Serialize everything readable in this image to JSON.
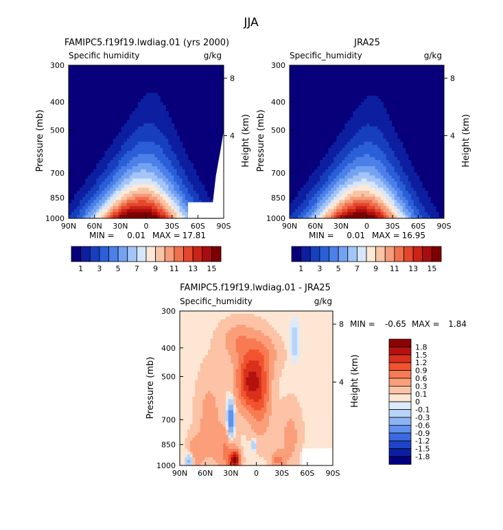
{
  "figure": {
    "title": "JJA"
  },
  "chart_data": [
    {
      "type": "heatmap",
      "title": "FAMIPC5.f19f19.lwdiag.01 (yrs 2000)",
      "subtitle_left": "Specific humidity",
      "subtitle_right": "g/kg",
      "ylabel": "Pressure (mb)",
      "ylabel_right": "Height (km)",
      "x_ticks": [
        "90N",
        "60N",
        "30N",
        "0",
        "30S",
        "60S",
        "90S"
      ],
      "y_ticks": [
        "300",
        "400",
        "500",
        "700",
        "850",
        "1000"
      ],
      "y_right_ticks": [
        "8",
        "4"
      ],
      "stats": {
        "min_label": "MIN =",
        "min": "0.01",
        "max_label": "MAX =",
        "max": "17.81"
      },
      "peak": {
        "lat": 15,
        "p": 950,
        "value": 17.81
      },
      "colorbar": {
        "orientation": "horizontal",
        "labels": [
          "1",
          "3",
          "5",
          "7",
          "9",
          "11",
          "13",
          "15"
        ]
      }
    },
    {
      "type": "heatmap",
      "title": "JRA25",
      "subtitle_left": "Specific_humidity",
      "subtitle_right": "g/kg",
      "ylabel": "Pressure (mb)",
      "ylabel_right": "Height (km)",
      "x_ticks": [
        "90N",
        "60N",
        "30N",
        "0",
        "30S",
        "60S",
        "90S"
      ],
      "y_ticks": [
        "300",
        "400",
        "500",
        "700",
        "850",
        "1000"
      ],
      "y_right_ticks": [
        "8",
        "4"
      ],
      "stats": {
        "min_label": "MIN =",
        "min": "0.01",
        "max_label": "MAX =",
        "max": "16.95"
      },
      "peak": {
        "lat": 8,
        "p": 950,
        "value": 16.95
      },
      "colorbar": {
        "orientation": "horizontal",
        "labels": [
          "1",
          "3",
          "5",
          "7",
          "9",
          "11",
          "13",
          "15"
        ]
      }
    },
    {
      "type": "heatmap",
      "title": "FAMIPC5.f19f19.lwdiag.01 - JRA25",
      "subtitle_left": "Specific_humidity",
      "subtitle_right": "g/kg",
      "ylabel": "Pressure (mb)",
      "ylabel_right": "Height (km)",
      "x_ticks": [
        "90N",
        "60N",
        "30N",
        "0",
        "30S",
        "60S",
        "90S"
      ],
      "y_ticks": [
        "300",
        "400",
        "500",
        "700",
        "850",
        "1000"
      ],
      "y_right_ticks": [
        "8",
        "4"
      ],
      "stats": {
        "min_label": "MIN =",
        "min": "-0.65",
        "max_label": "MAX =",
        "max": "1.84"
      },
      "colorbar": {
        "orientation": "vertical",
        "labels": [
          "1.8",
          "1.5",
          "1.2",
          "0.9",
          "0.6",
          "0.3",
          "0.1",
          "0",
          "-0.1",
          "-0.3",
          "-0.6",
          "-0.9",
          "-1.2",
          "-1.5",
          "-1.8"
        ]
      }
    }
  ],
  "colors": {
    "abs_scale": [
      "#08007a",
      "#0d1fa0",
      "#173fbd",
      "#2b5fd8",
      "#4c80e8",
      "#74a2f2",
      "#a3c5f8",
      "#d6e6fb",
      "#fde9d6",
      "#f8c4a6",
      "#f59d7a",
      "#f0704e",
      "#e5472c",
      "#cc2316",
      "#a80d0d",
      "#7d0000"
    ],
    "diff_scale": [
      "#8b0000",
      "#b3120e",
      "#d9301c",
      "#f2532e",
      "#f77a52",
      "#fa9f7a",
      "#fcc3a6",
      "#fde6d4",
      "#dcebfc",
      "#b7d3f8",
      "#8db4f2",
      "#6190ec",
      "#3a6ae0",
      "#1c44c8",
      "#0a1fa0",
      "#000080"
    ]
  }
}
